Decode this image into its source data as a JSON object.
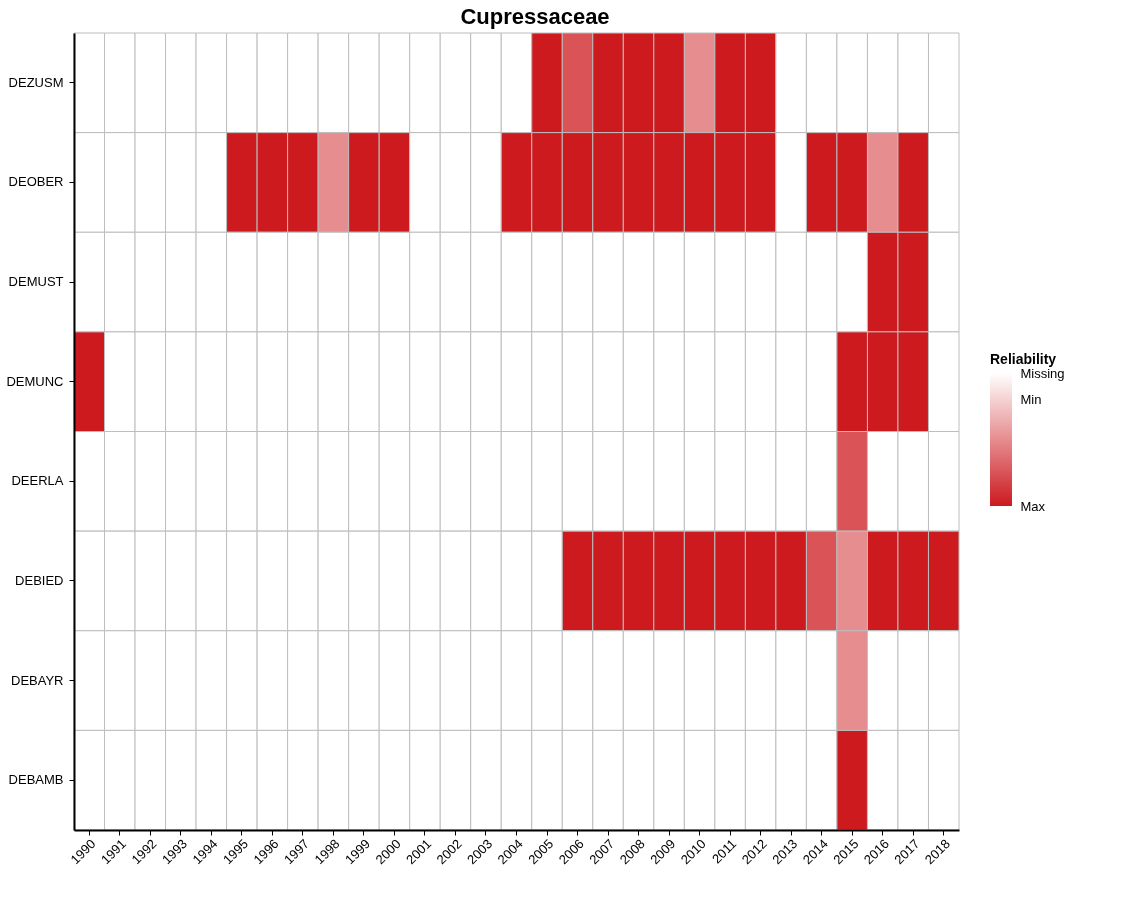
{
  "chart_data": {
    "type": "heatmap",
    "title": "Cupressaceae",
    "legend_title": "Reliability",
    "categories": [
      "1990",
      "1991",
      "1992",
      "1993",
      "1994",
      "1995",
      "1996",
      "1997",
      "1998",
      "1999",
      "2000",
      "2001",
      "2002",
      "2003",
      "2004",
      "2005",
      "2006",
      "2007",
      "2008",
      "2009",
      "2010",
      "2011",
      "2012",
      "2013",
      "2014",
      "2015",
      "2016",
      "2017",
      "2018"
    ],
    "y_categories": [
      "DEZUSM",
      "DEOBER",
      "DEMUST",
      "DEMUNC",
      "DEERLA",
      "DEBIED",
      "DEBAYR",
      "DEBAMB"
    ],
    "cells": [
      [
        1,
        1,
        1,
        1,
        1,
        1,
        1,
        1,
        1,
        1,
        1,
        1,
        1,
        1,
        1,
        0,
        0.25,
        0,
        0,
        0,
        0.5,
        0,
        0,
        1,
        1,
        1,
        1,
        1,
        1
      ],
      [
        1,
        1,
        1,
        1,
        1,
        0,
        0,
        0,
        0.5,
        0,
        0,
        1,
        1,
        1,
        0,
        0,
        0,
        0,
        0,
        0,
        0,
        0,
        0,
        1,
        0,
        0,
        0.5,
        0,
        1
      ],
      [
        1,
        1,
        1,
        1,
        1,
        1,
        1,
        1,
        1,
        1,
        1,
        1,
        1,
        1,
        1,
        1,
        1,
        1,
        1,
        1,
        1,
        1,
        1,
        1,
        1,
        1,
        0,
        0,
        1
      ],
      [
        0,
        1,
        1,
        1,
        1,
        1,
        1,
        1,
        1,
        1,
        1,
        1,
        1,
        1,
        1,
        1,
        1,
        1,
        1,
        1,
        1,
        1,
        1,
        1,
        1,
        0,
        0,
        0,
        1
      ],
      [
        1,
        1,
        1,
        1,
        1,
        1,
        1,
        1,
        1,
        1,
        1,
        1,
        1,
        1,
        1,
        1,
        1,
        1,
        1,
        1,
        1,
        1,
        1,
        1,
        1,
        0.25,
        1,
        1,
        1
      ],
      [
        1,
        1,
        1,
        1,
        1,
        1,
        1,
        1,
        1,
        1,
        1,
        1,
        1,
        1,
        1,
        1,
        0,
        0,
        0,
        0,
        0,
        0,
        0,
        0,
        0.25,
        0.5,
        0,
        0,
        0
      ],
      [
        1,
        1,
        1,
        1,
        1,
        1,
        1,
        1,
        1,
        1,
        1,
        1,
        1,
        1,
        1,
        1,
        1,
        1,
        1,
        1,
        1,
        1,
        1,
        1,
        1,
        0.5,
        1,
        1,
        1
      ],
      [
        1,
        1,
        1,
        1,
        1,
        1,
        1,
        1,
        1,
        1,
        1,
        1,
        1,
        1,
        1,
        1,
        1,
        1,
        1,
        1,
        1,
        1,
        1,
        1,
        1,
        0,
        1,
        1,
        1
      ]
    ],
    "clim": [
      0,
      1
    ],
    "cticks": [
      {
        "value": 1,
        "label": "Missing"
      },
      {
        "value": 0.8,
        "label": "Min"
      },
      {
        "value": 0,
        "label": "Max"
      }
    ],
    "colors": [
      "#cc1a1f",
      "#ffffff"
    ]
  }
}
